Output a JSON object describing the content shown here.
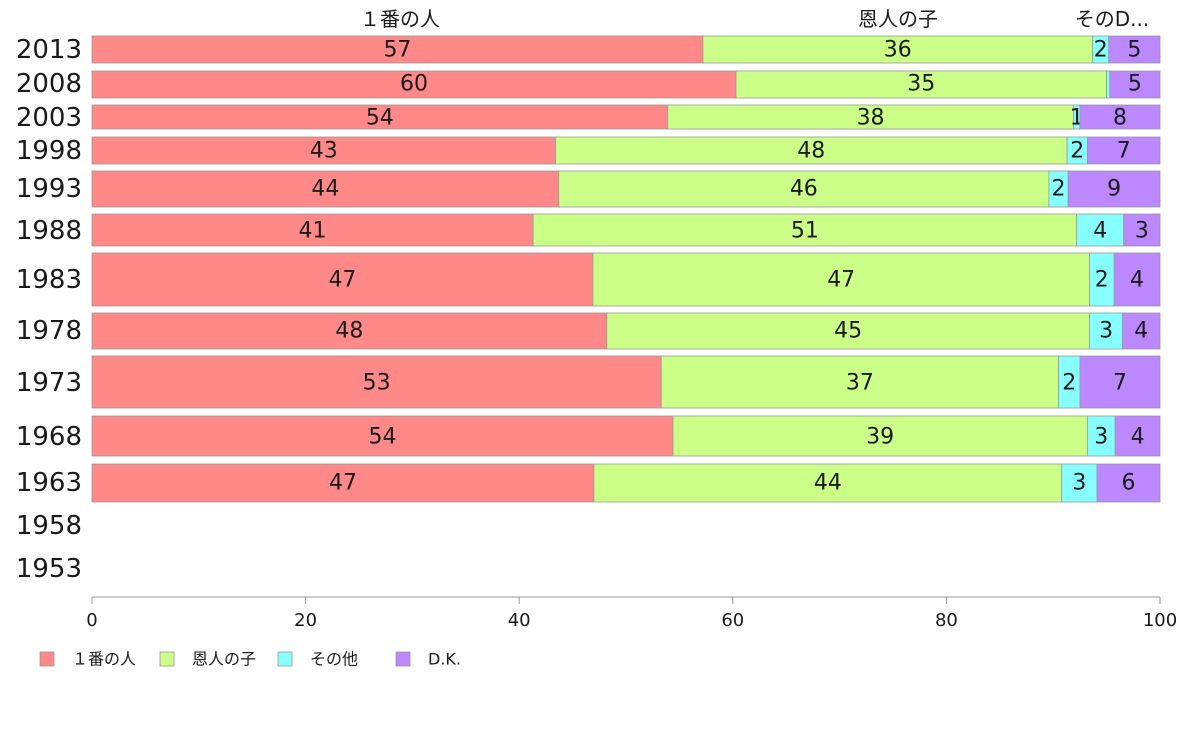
{
  "chart_data": {
    "type": "bar",
    "orientation": "horizontal",
    "stacked": true,
    "categories": [
      "2013",
      "2008",
      "2003",
      "1998",
      "1993",
      "1988",
      "1983",
      "1978",
      "1973",
      "1968",
      "1963",
      "1958",
      "1953"
    ],
    "series": [
      {
        "name": "１番の人",
        "color": "#ff8888",
        "values": [
          57,
          60,
          54,
          43,
          44,
          41,
          47,
          48,
          53,
          54,
          47,
          null,
          null
        ]
      },
      {
        "name": "恩人の子",
        "color": "#ccff88",
        "values": [
          36,
          35,
          38,
          48,
          46,
          51,
          47,
          45,
          37,
          39,
          44,
          null,
          null
        ]
      },
      {
        "name": "その他",
        "color": "#88ffff",
        "values": [
          2,
          null,
          1,
          2,
          2,
          4,
          2,
          3,
          2,
          3,
          3,
          null,
          null
        ]
      },
      {
        "name": "D.K.",
        "color": "#bb88ff",
        "values": [
          5,
          5,
          8,
          7,
          9,
          3,
          4,
          4,
          7,
          4,
          6,
          null,
          null
        ]
      }
    ],
    "segment_widths_percent": [
      [
        57.2,
        36.5,
        1.5,
        4.8
      ],
      [
        60.3,
        34.7,
        0.3,
        4.7
      ],
      [
        53.9,
        38.0,
        0.6,
        7.5
      ],
      [
        43.4,
        47.9,
        1.9,
        6.8
      ],
      [
        43.7,
        45.9,
        1.8,
        8.6
      ],
      [
        41.3,
        50.9,
        4.4,
        3.4
      ],
      [
        46.9,
        46.5,
        2.3,
        4.3
      ],
      [
        48.2,
        45.2,
        3.1,
        3.5
      ],
      [
        53.3,
        37.2,
        2.0,
        7.5
      ],
      [
        54.4,
        38.8,
        2.6,
        4.2
      ],
      [
        47.0,
        43.8,
        3.3,
        5.9
      ],
      [
        null,
        null,
        null,
        null
      ],
      [
        null,
        null,
        null,
        null
      ]
    ],
    "top_labels": [
      "１番の人",
      "恩人の子",
      "そのD..."
    ],
    "xlim": [
      0,
      100
    ],
    "xticks": [
      0,
      20,
      40,
      60,
      80,
      100
    ],
    "grid": false,
    "legend_position": "bottom-left"
  }
}
